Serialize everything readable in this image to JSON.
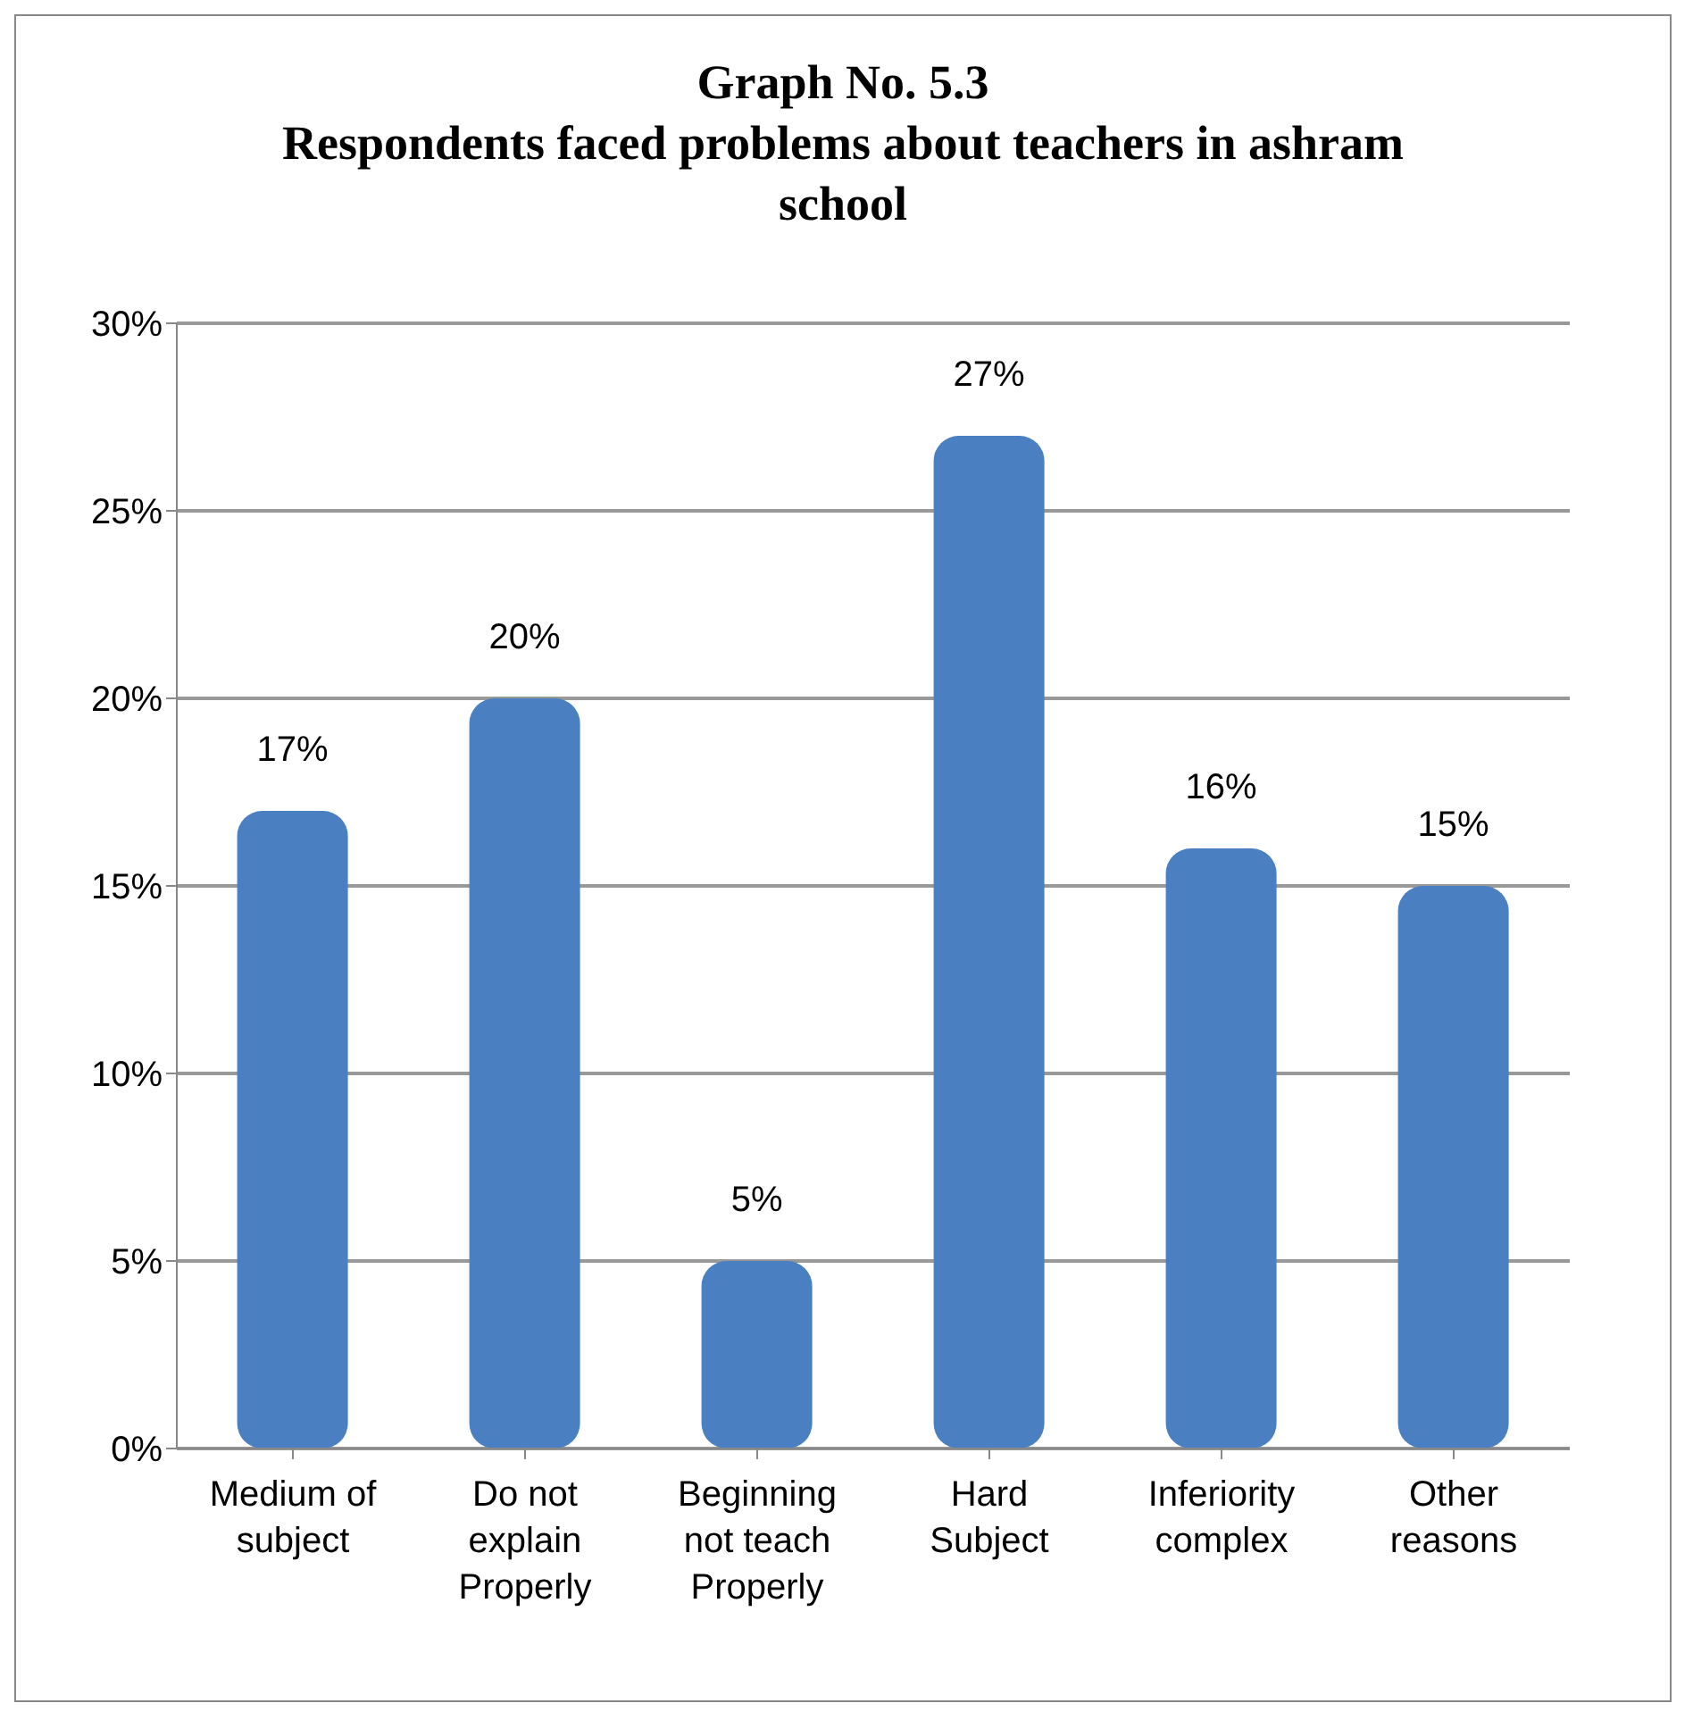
{
  "chart_data": {
    "type": "bar",
    "title": "Graph No. 5.3",
    "subtitle": "Respondents faced problems about teachers in ashram school",
    "categories": [
      "Medium of subject",
      "Do not explain Properly",
      "Beginning not teach Properly",
      "Hard Subject",
      "Inferiority complex",
      "Other reasons"
    ],
    "values": [
      17,
      20,
      5,
      27,
      16,
      15
    ],
    "value_labels": [
      "17%",
      "20%",
      "5%",
      "27%",
      "16%",
      "15%"
    ],
    "color": "#4a7fc1",
    "ylim": [
      0,
      30
    ],
    "yticks": [
      {
        "value": 0,
        "label": "0%"
      },
      {
        "value": 5,
        "label": "5%"
      },
      {
        "value": 10,
        "label": "10%"
      },
      {
        "value": 15,
        "label": "15%"
      },
      {
        "value": 20,
        "label": "20%"
      },
      {
        "value": 25,
        "label": "25%"
      },
      {
        "value": 30,
        "label": "30%"
      }
    ],
    "grid": "y",
    "legend": false
  }
}
